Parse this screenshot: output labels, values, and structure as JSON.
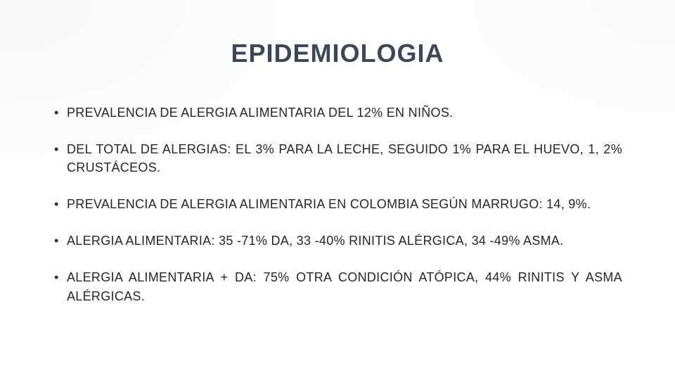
{
  "slide": {
    "title": "EPIDEMIOLOGIA",
    "title_color": "#3c4858",
    "title_fontsize": 36,
    "body_fontsize": 18,
    "body_color": "#262626",
    "background_color": "#ffffff",
    "bullets": [
      "PREVALENCIA DE ALERGIA ALIMENTARIA DEL 12% EN NIÑOS.",
      "DEL TOTAL DE ALERGIAS: EL 3% PARA LA LECHE, SEGUIDO 1% PARA EL HUEVO, 1, 2% CRUSTÁCEOS.",
      "PREVALENCIA DE ALERGIA ALIMENTARIA EN COLOMBIA SEGÚN MARRUGO: 14, 9%.",
      "ALERGIA ALIMENTARIA: 35 -71% DA, 33 -40% RINITIS ALÉRGICA, 34 -49% ASMA.",
      "ALERGIA ALIMENTARIA + DA: 75% OTRA CONDICIÓN ATÓPICA, 44% RINITIS Y ASMA ALÉRGICAS."
    ]
  }
}
